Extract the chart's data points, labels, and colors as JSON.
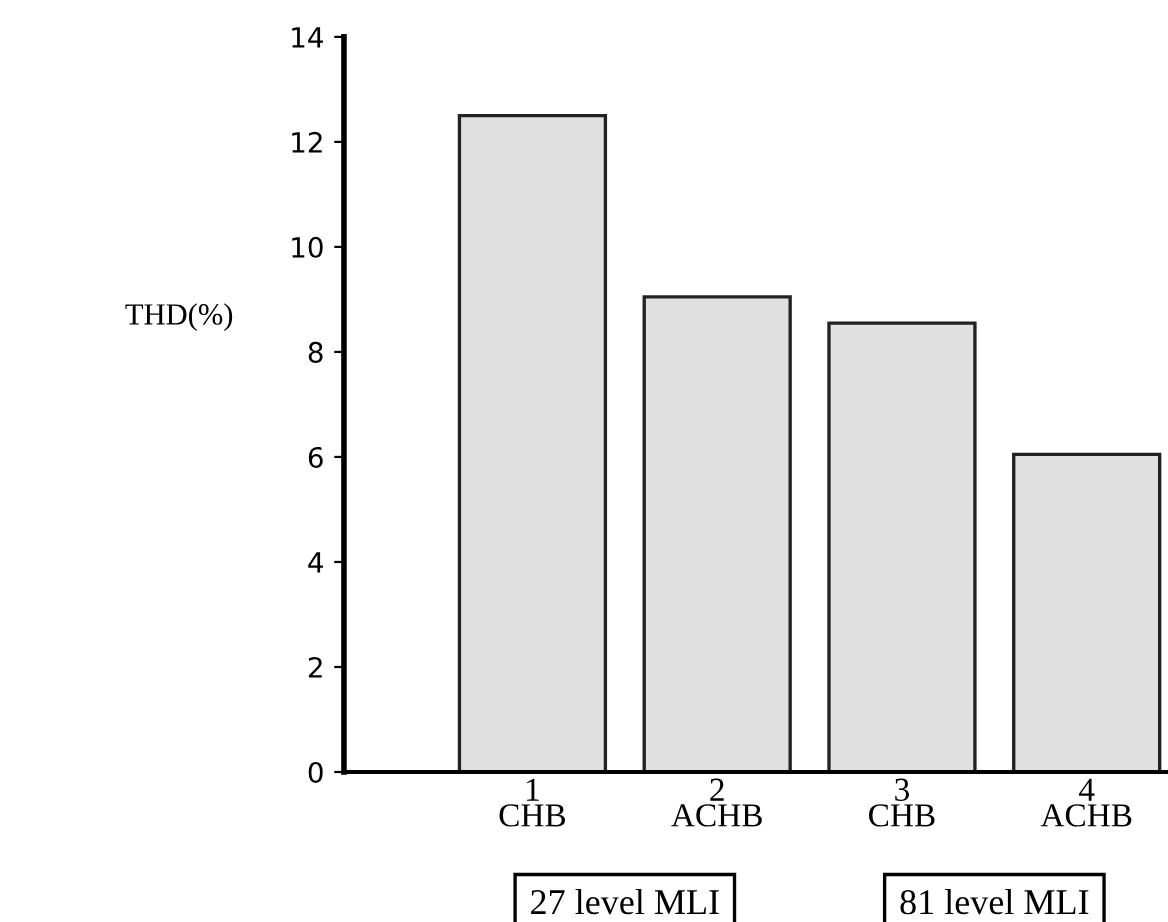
{
  "chart_data": {
    "type": "bar",
    "ylabel": "THD(%)",
    "categories": [
      "1\nCHB",
      "2\nACHB",
      "3\nCHB",
      "4\nACHB"
    ],
    "values": [
      12.5,
      9.05,
      8.55,
      6.05
    ],
    "color": "#e0e0e0",
    "ylim": [
      0,
      14
    ],
    "yticks": [
      0,
      2,
      4,
      6,
      8,
      10,
      12,
      14
    ],
    "grid": false,
    "annotations": [
      "27 level MLI",
      "81 level MLI"
    ]
  }
}
